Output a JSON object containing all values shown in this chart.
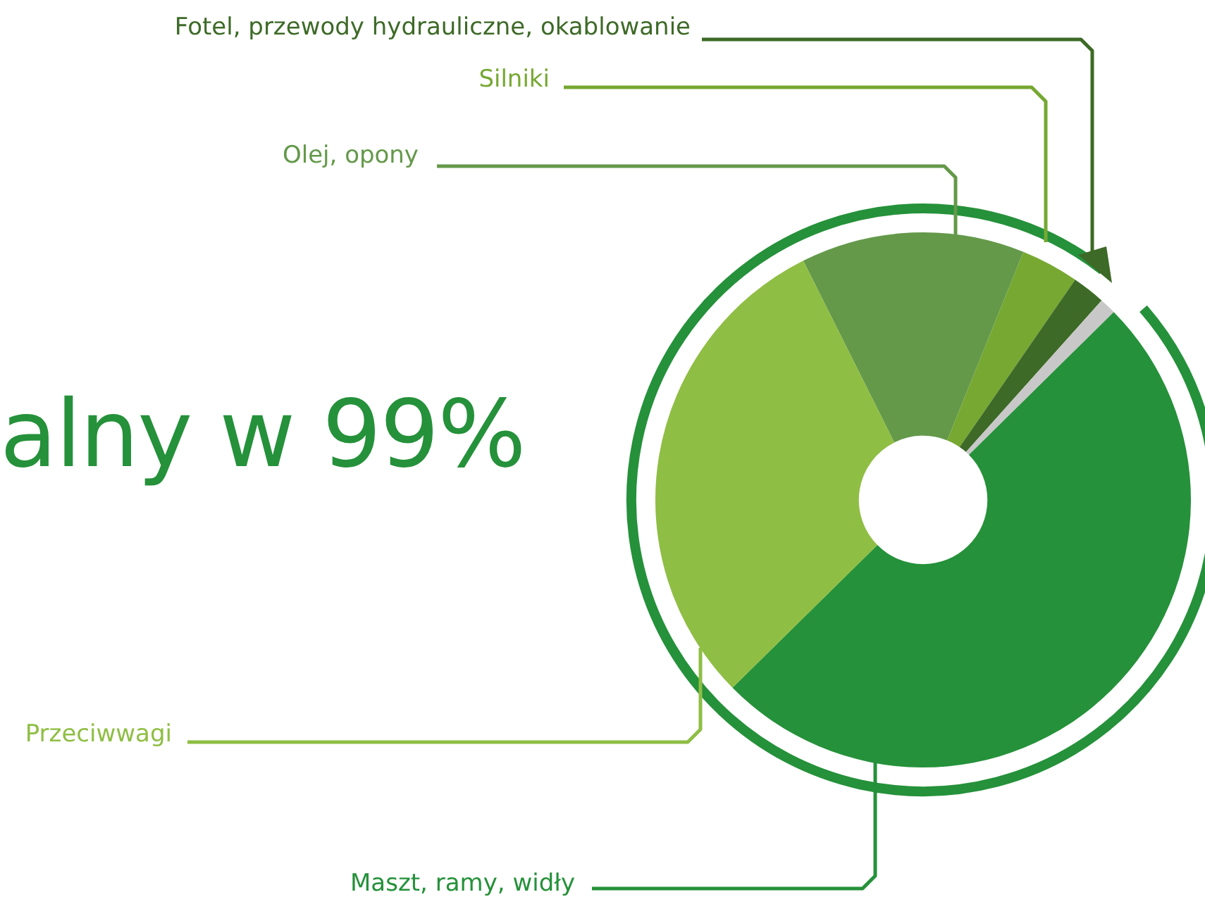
{
  "chart_data": {
    "type": "donut",
    "title": "alny w 99%",
    "categories": [
      "Olej, opony",
      "Silniki",
      "Fotel, przewody hydrauliczne, okablowanie",
      null,
      "Maszt, ramy, widły",
      "Przeciwwagi"
    ],
    "values": [
      13.5,
      3.5,
      2,
      1,
      50,
      30
    ],
    "colors": [
      "#64994a",
      "#76a832",
      "#3d6a27",
      "#c8c8c8",
      "#25913a",
      "#8fbe44"
    ]
  }
}
